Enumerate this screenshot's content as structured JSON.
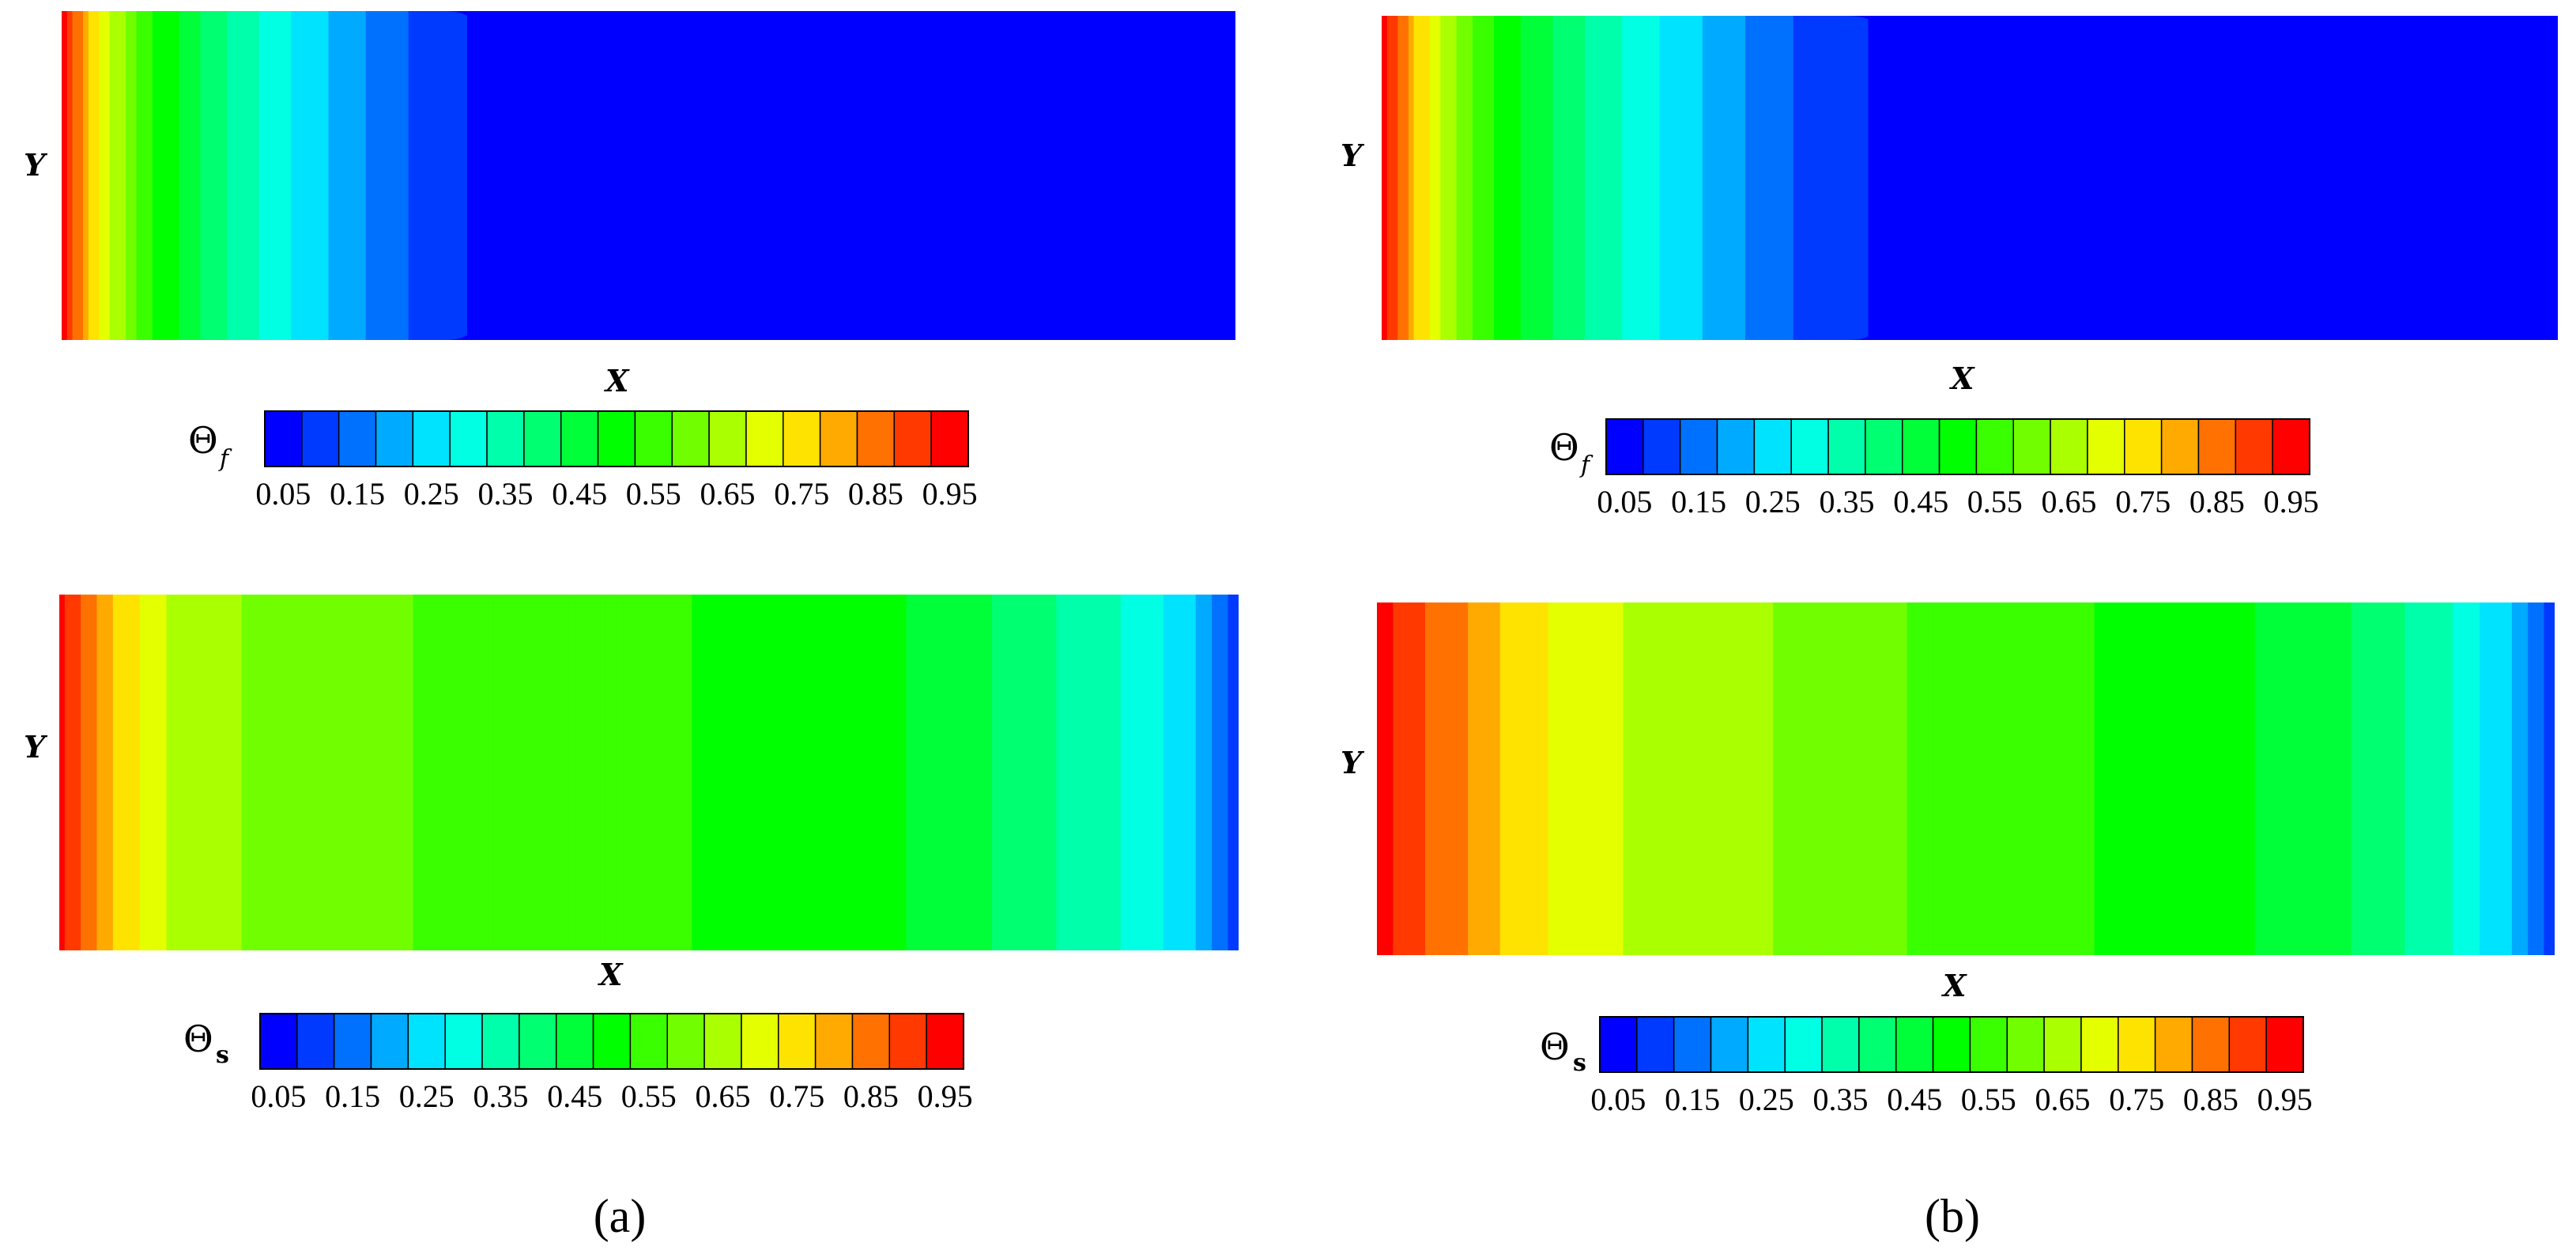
{
  "figure": {
    "panels": [
      {
        "id": "a",
        "caption": "(a)",
        "plots": [
          {
            "id": "fluid",
            "xlabel": "X",
            "ylabel": "Y",
            "legend": {
              "symbol": "Θ",
              "subscript": "f",
              "subscript_italic": true
            },
            "field": {
              "profile": [
                [
                  0.0,
                  0.97
                ],
                [
                  0.006,
                  0.93
                ],
                [
                  0.012,
                  0.88
                ],
                [
                  0.018,
                  0.84
                ],
                [
                  0.024,
                  0.79
                ],
                [
                  0.031,
                  0.75
                ],
                [
                  0.038,
                  0.7
                ],
                [
                  0.046,
                  0.66
                ],
                [
                  0.055,
                  0.62
                ],
                [
                  0.066,
                  0.57
                ],
                [
                  0.078,
                  0.53
                ],
                [
                  0.092,
                  0.49
                ],
                [
                  0.108,
                  0.45
                ],
                [
                  0.127,
                  0.4
                ],
                [
                  0.145,
                  0.36
                ],
                [
                  0.166,
                  0.32
                ],
                [
                  0.19,
                  0.27
                ],
                [
                  0.215,
                  0.23
                ],
                [
                  0.246,
                  0.18
                ],
                [
                  0.272,
                  0.14
                ],
                [
                  0.306,
                  0.09
                ],
                [
                  0.36,
                  0.04
                ],
                [
                  1.0,
                  0.04
                ]
              ],
              "rounded_front": true
            }
          },
          {
            "id": "solid",
            "xlabel": "X",
            "ylabel": "Y",
            "legend": {
              "symbol": "Θ",
              "subscript": "s",
              "subscript_italic": false
            },
            "field": {
              "profile": [
                [
                  0.0,
                  0.97
                ],
                [
                  0.011,
                  0.93
                ],
                [
                  0.022,
                  0.88
                ],
                [
                  0.033,
                  0.84
                ],
                [
                  0.046,
                  0.79
                ],
                [
                  0.062,
                  0.75
                ],
                [
                  0.081,
                  0.7
                ],
                [
                  0.11,
                  0.66
                ],
                [
                  0.17,
                  0.62
                ],
                [
                  0.33,
                  0.57
                ],
                [
                  0.52,
                  0.53
                ],
                [
                  0.69,
                  0.49
                ],
                [
                  0.76,
                  0.45
                ],
                [
                  0.81,
                  0.4
                ],
                [
                  0.855,
                  0.36
                ],
                [
                  0.895,
                  0.32
                ],
                [
                  0.93,
                  0.27
                ],
                [
                  0.955,
                  0.23
                ],
                [
                  0.972,
                  0.18
                ],
                [
                  0.985,
                  0.14
                ],
                [
                  0.993,
                  0.09
                ],
                [
                  1.0,
                  0.05
                ]
              ],
              "rounded_front": false
            }
          }
        ]
      },
      {
        "id": "b",
        "caption": "(b)",
        "plots": [
          {
            "id": "fluid",
            "xlabel": "X",
            "ylabel": "Y",
            "legend": {
              "symbol": "Θ",
              "subscript": "f",
              "subscript_italic": true
            },
            "field": {
              "profile": [
                [
                  0.0,
                  0.97
                ],
                [
                  0.007,
                  0.93
                ],
                [
                  0.014,
                  0.88
                ],
                [
                  0.021,
                  0.84
                ],
                [
                  0.029,
                  0.79
                ],
                [
                  0.037,
                  0.75
                ],
                [
                  0.046,
                  0.7
                ],
                [
                  0.056,
                  0.66
                ],
                [
                  0.067,
                  0.62
                ],
                [
                  0.08,
                  0.57
                ],
                [
                  0.095,
                  0.53
                ],
                [
                  0.112,
                  0.49
                ],
                [
                  0.131,
                  0.45
                ],
                [
                  0.153,
                  0.4
                ],
                [
                  0.176,
                  0.36
                ],
                [
                  0.202,
                  0.32
                ],
                [
                  0.23,
                  0.27
                ],
                [
                  0.26,
                  0.23
                ],
                [
                  0.292,
                  0.18
                ],
                [
                  0.324,
                  0.14
                ],
                [
                  0.36,
                  0.09
                ],
                [
                  0.43,
                  0.04
                ],
                [
                  1.0,
                  0.04
                ]
              ],
              "rounded_front": true
            }
          },
          {
            "id": "solid",
            "xlabel": "X",
            "ylabel": "Y",
            "legend": {
              "symbol": "Θ",
              "subscript": "s",
              "subscript_italic": false
            },
            "field": {
              "profile": [
                [
                  0.0,
                  0.97
                ],
                [
                  0.025,
                  0.93
                ],
                [
                  0.05,
                  0.88
                ],
                [
                  0.078,
                  0.84
                ],
                [
                  0.105,
                  0.79
                ],
                [
                  0.135,
                  0.75
                ],
                [
                  0.175,
                  0.7
                ],
                [
                  0.26,
                  0.66
                ],
                [
                  0.37,
                  0.62
                ],
                [
                  0.47,
                  0.57
                ],
                [
                  0.6,
                  0.53
                ],
                [
                  0.71,
                  0.49
                ],
                [
                  0.8,
                  0.45
                ],
                [
                  0.85,
                  0.4
                ],
                [
                  0.88,
                  0.36
                ],
                [
                  0.91,
                  0.32
                ],
                [
                  0.93,
                  0.27
                ],
                [
                  0.955,
                  0.23
                ],
                [
                  0.972,
                  0.18
                ],
                [
                  0.985,
                  0.14
                ],
                [
                  0.993,
                  0.09
                ],
                [
                  1.0,
                  0.05
                ]
              ],
              "rounded_front": false
            }
          }
        ]
      }
    ],
    "colorbar": {
      "levels": 19,
      "tick_labels": [
        "0.05",
        "0.15",
        "0.25",
        "0.35",
        "0.45",
        "0.55",
        "0.65",
        "0.75",
        "0.85",
        "0.95"
      ],
      "colormap": [
        "#0000ff",
        "#00ffff",
        "#00ff00",
        "#ffff00",
        "#ff0000"
      ]
    }
  }
}
